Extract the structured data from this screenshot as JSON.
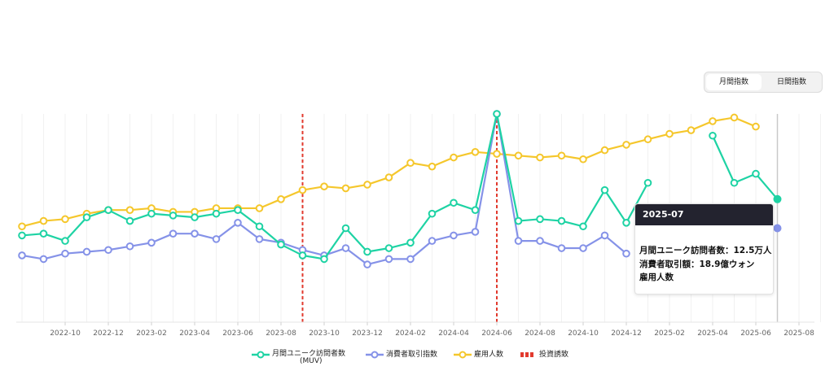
{
  "toggle": {
    "monthly": "月間指数",
    "daily": "日間指数"
  },
  "tooltip": {
    "title": "2025-07",
    "line1": "月間ユニーク訪問者数：12.5万人",
    "line2": "消費者取引額：18.9億ウォン",
    "line3": "雇用人数"
  },
  "legend": {
    "muv_line1": "月間ユニーク訪問者数",
    "muv_line2": "(MUV)",
    "tx": "消費者取引指数",
    "emp": "雇用人数",
    "inv": "投資誘致"
  },
  "colors": {
    "muv": "#1ed3a4",
    "tx": "#8592e8",
    "emp": "#f5c72c",
    "inv": "#e23a2e"
  },
  "chart_data": {
    "type": "line",
    "x_tick_labels": [
      "2022-10",
      "2022-12",
      "2023-02",
      "2023-04",
      "2023-06",
      "2023-08",
      "2023-10",
      "2023-12",
      "2024-02",
      "2024-04",
      "2024-06",
      "2024-08",
      "2024-10",
      "2024-12",
      "2025-02",
      "2025-04",
      "2025-06",
      "2025-08"
    ],
    "x_months": [
      "2022-08",
      "2022-09",
      "2022-10",
      "2022-11",
      "2022-12",
      "2023-01",
      "2023-02",
      "2023-03",
      "2023-04",
      "2023-05",
      "2023-06",
      "2023-07",
      "2023-08",
      "2023-09",
      "2023-10",
      "2023-11",
      "2023-12",
      "2024-01",
      "2024-02",
      "2024-03",
      "2024-04",
      "2024-05",
      "2024-06",
      "2024-07",
      "2024-08",
      "2024-09",
      "2024-10",
      "2024-11",
      "2024-12",
      "2025-01",
      "2025-02",
      "2025-03",
      "2025-04",
      "2025-05",
      "2025-06",
      "2025-07"
    ],
    "ylim": [
      0,
      100
    ],
    "y_axis_visible": false,
    "grid": "vertical",
    "legend_position": "bottom",
    "series": [
      {
        "name": "月間ユニーク訪問者数 (MUV)",
        "color_key": "muv",
        "values": [
          33,
          34,
          30,
          43,
          47,
          41,
          45,
          44,
          43,
          45,
          47,
          38,
          28,
          22,
          20,
          37,
          24,
          26,
          29,
          45,
          51,
          47,
          100,
          41,
          42,
          41,
          38,
          58,
          40,
          62,
          null,
          null,
          88,
          62,
          67,
          53
        ]
      },
      {
        "name": "消費者取引指数",
        "color_key": "tx",
        "values": [
          22,
          20,
          23,
          24,
          25,
          27,
          29,
          34,
          34,
          31,
          40,
          31,
          29,
          25,
          22,
          26,
          17,
          20,
          20,
          30,
          33,
          35,
          100,
          30,
          30,
          26,
          26,
          33,
          23,
          null,
          null,
          null,
          null,
          null,
          null,
          37
        ]
      },
      {
        "name": "雇用人数",
        "color_key": "emp",
        "values": [
          38,
          41,
          42,
          45,
          47,
          47,
          48,
          46,
          46,
          48,
          48,
          48,
          53,
          58,
          60,
          59,
          61,
          65,
          73,
          71,
          76,
          79,
          78,
          77,
          76,
          77,
          75,
          80,
          83,
          86,
          89,
          91,
          96,
          98,
          93,
          null
        ]
      }
    ],
    "investment_markers": [
      "2023-09",
      "2024-06"
    ]
  }
}
